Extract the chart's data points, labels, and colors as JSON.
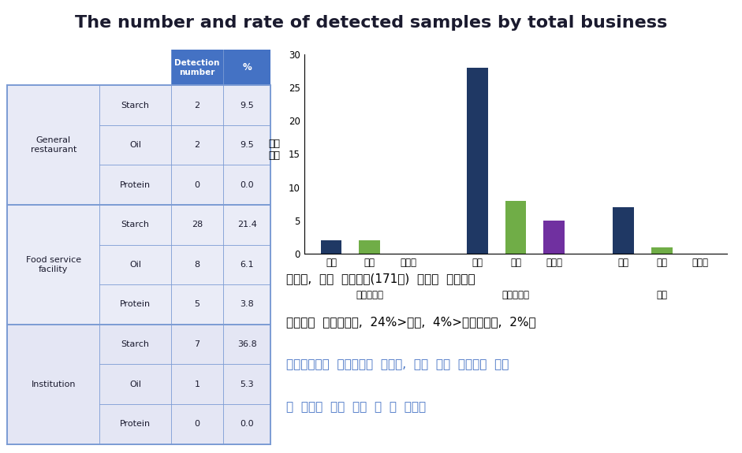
{
  "title": "The number and rate of detected samples by total business",
  "title_bg": "#F5D000",
  "title_color": "#1a1a2e",
  "title_fontsize": 16,
  "table": {
    "header_bg": "#4472C4",
    "header_color": "white",
    "row_groups": [
      {
        "group": "General\nrestaurant",
        "rows": [
          [
            "Starch",
            "2",
            "9.5"
          ],
          [
            "Oil",
            "2",
            "9.5"
          ],
          [
            "Protein",
            "0",
            "0.0"
          ]
        ]
      },
      {
        "group": "Food service\nfacility",
        "rows": [
          [
            "Starch",
            "28",
            "21.4"
          ],
          [
            "Oil",
            "8",
            "6.1"
          ],
          [
            "Protein",
            "5",
            "3.8"
          ]
        ]
      },
      {
        "group": "Institution",
        "rows": [
          [
            "Starch",
            "7",
            "36.8"
          ],
          [
            "Oil",
            "1",
            "5.3"
          ],
          [
            "Protein",
            "0",
            "0.0"
          ]
        ]
      }
    ],
    "cell_bg": "#E8EAF6",
    "border_color": "#7B9BD4"
  },
  "bar_chart": {
    "groups": [
      {
        "label": "일반음식점",
        "bars": [
          {
            "sub_label": "전분",
            "value": 2,
            "color": "#1F3864"
          },
          {
            "sub_label": "유지",
            "value": 2,
            "color": "#70AD47"
          },
          {
            "sub_label": "단백질",
            "value": 0,
            "color": "#7030A0"
          }
        ]
      },
      {
        "label": "단체급식소",
        "bars": [
          {
            "sub_label": "전분",
            "value": 28,
            "color": "#1F3864"
          },
          {
            "sub_label": "유지",
            "value": 8,
            "color": "#70AD47"
          },
          {
            "sub_label": "단백질",
            "value": 5,
            "color": "#7030A0"
          }
        ]
      },
      {
        "label": "기관",
        "bars": [
          {
            "sub_label": "전분",
            "value": 7,
            "color": "#1F3864"
          },
          {
            "sub_label": "유지",
            "value": 1,
            "color": "#70AD47"
          },
          {
            "sub_label": "단백질",
            "value": 0,
            "color": "#7030A0"
          }
        ]
      }
    ],
    "ylabel": "검술\n건수",
    "ylim": [
      0,
      30
    ],
    "yticks": [
      0,
      5,
      10,
      15,
      20,
      25,
      30
    ]
  },
  "text_lines": [
    {
      "text": "따라서,  전체  시료건수(171건)  대비로  환산하면",
      "color": "#000000"
    },
    {
      "text": "검출율은  단체급식소,  24%>기관,  4%>일반음식점,  2%로",
      "color": "#000000"
    },
    {
      "text": "단체급식소가  상대적으로  높았고,  식재  성분  중에서는  전분",
      "color": "#4472C4"
    },
    {
      "text": "의  비율이  제일  큼을  알  수  있었음",
      "color": "#4472C4"
    }
  ]
}
